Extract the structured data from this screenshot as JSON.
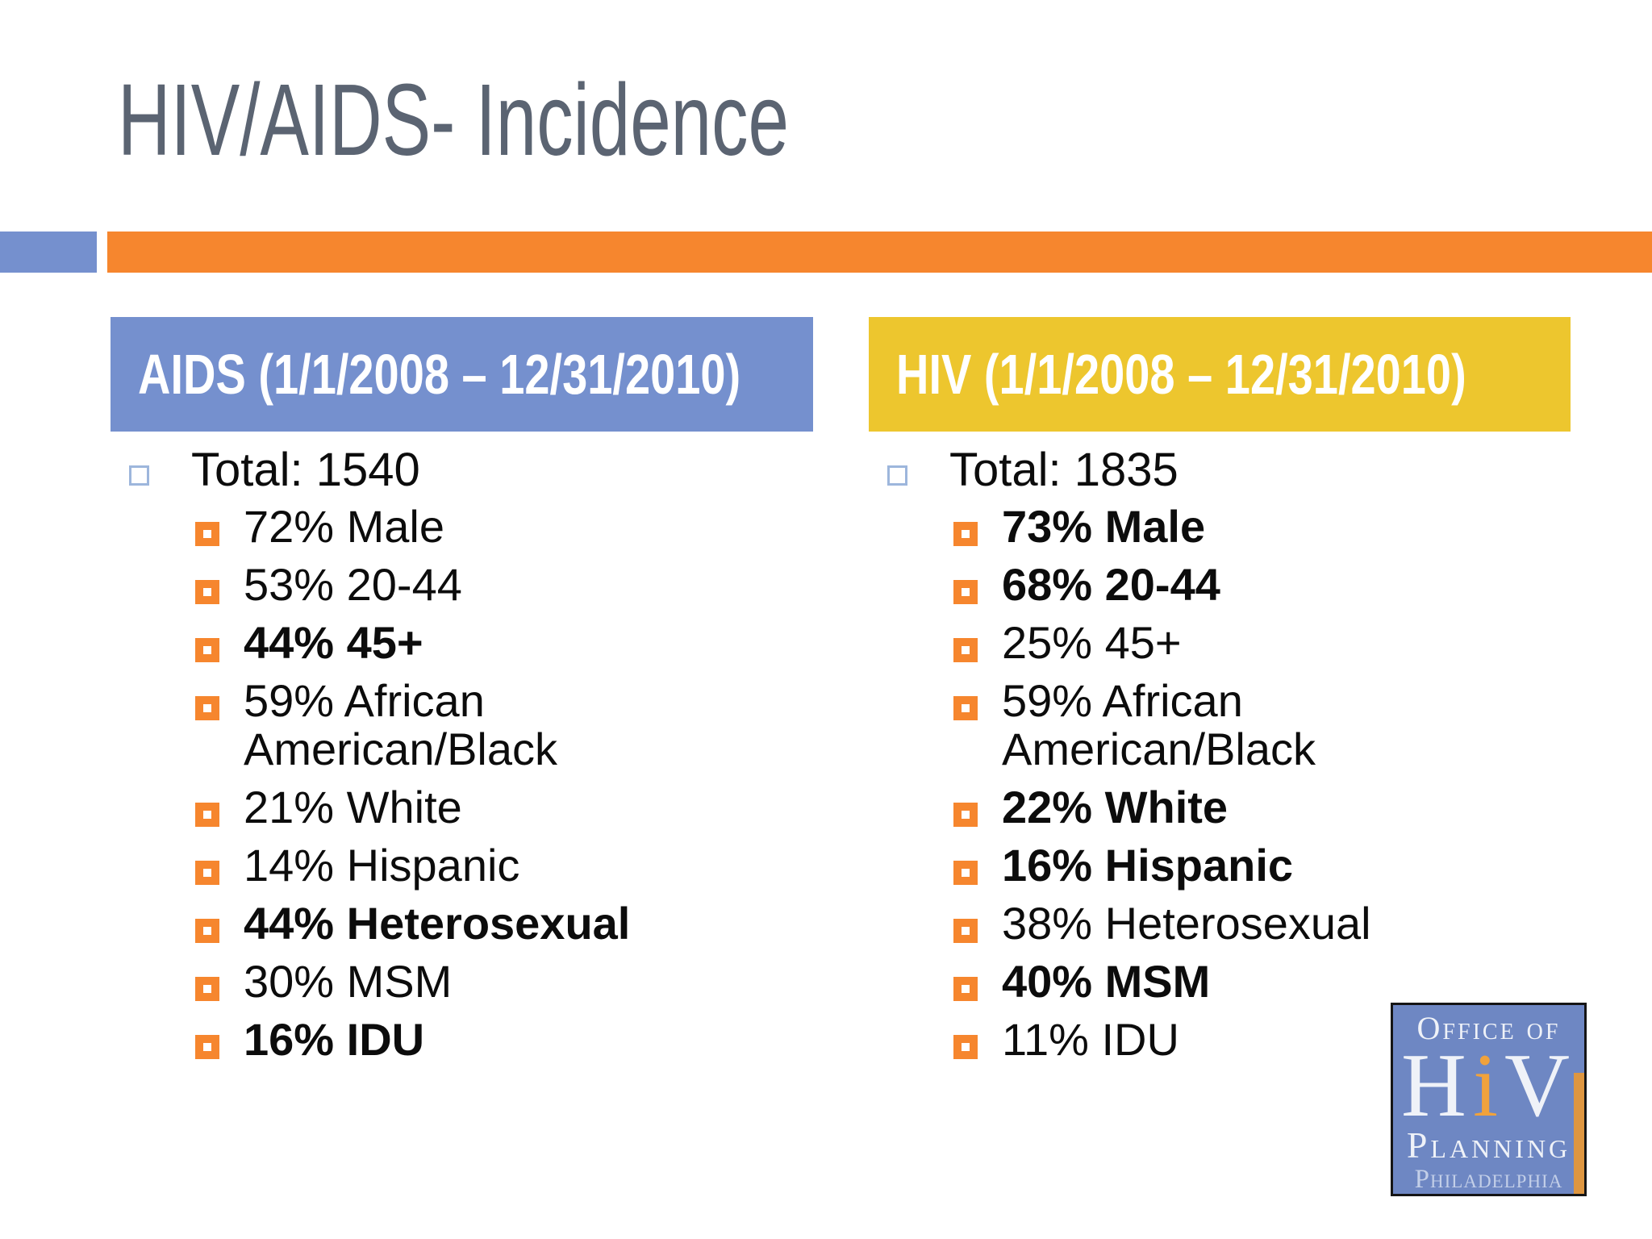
{
  "title": "HIV/AIDS- Incidence",
  "columns": {
    "aids": {
      "header": "AIDS (1/1/2008 – 12/31/2010)",
      "total": "Total: 1540",
      "items": [
        {
          "text": "72% Male",
          "bold": false
        },
        {
          "text": "53% 20-44",
          "bold": false
        },
        {
          "text": "44% 45+",
          "bold": true
        },
        {
          "text": "59% African American/Black",
          "bold": false
        },
        {
          "text": "21% White",
          "bold": false
        },
        {
          "text": "14% Hispanic",
          "bold": false
        },
        {
          "text": "44% Heterosexual",
          "bold": true
        },
        {
          "text": "30% MSM",
          "bold": false
        },
        {
          "text": "16% IDU",
          "bold": true
        }
      ]
    },
    "hiv": {
      "header": "HIV (1/1/2008 – 12/31/2010)",
      "total": "Total: 1835",
      "items": [
        {
          "text": "73% Male",
          "bold": true
        },
        {
          "text": "68% 20-44",
          "bold": true
        },
        {
          "text": "25% 45+",
          "bold": false
        },
        {
          "text": "59% African American/Black",
          "bold": false
        },
        {
          "text": "22% White",
          "bold": true
        },
        {
          "text": "16% Hispanic",
          "bold": true
        },
        {
          "text": "38% Heterosexual",
          "bold": false
        },
        {
          "text": "40% MSM",
          "bold": true
        },
        {
          "text": "11% IDU",
          "bold": false
        }
      ]
    }
  },
  "logo": {
    "office_of": "Office of",
    "hiv_h": "H",
    "hiv_i": "i",
    "hiv_v": "V",
    "planning": "Planning",
    "philadelphia": "Philadelphia"
  },
  "colors": {
    "accent_orange": "#F6862E",
    "aids_header_blue": "#7590CE",
    "hiv_header_yellow": "#EDC62E",
    "title_gray": "#5B6472",
    "total_bullet_blue": "#9DB6DC",
    "logo_blue": "#6E87C3",
    "logo_orange": "#F0A23C",
    "body_text": "#0C0C0C"
  }
}
